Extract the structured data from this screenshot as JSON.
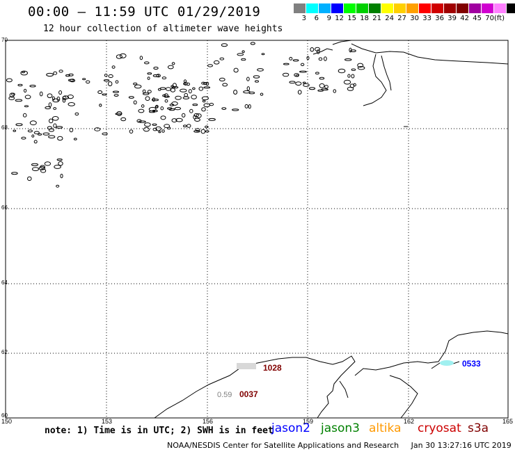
{
  "header": {
    "title": "00:00 – 11:59 UTC 01/29/2019",
    "subtitle": "12 hour collection of altimeter wave heights"
  },
  "legend": {
    "colors": [
      "#808080",
      "#00ffff",
      "#00b0ff",
      "#0000ff",
      "#00ff00",
      "#00d000",
      "#008000",
      "#ffff00",
      "#ffd000",
      "#ffa000",
      "#ff0000",
      "#d00000",
      "#a00000",
      "#800000",
      "#a000a0",
      "#d000d0",
      "#ff80ff",
      "#000000"
    ],
    "labels": [
      "3",
      "6",
      "9",
      "12",
      "15",
      "18",
      "21",
      "24",
      "27",
      "30",
      "33",
      "36",
      "39",
      "42",
      "45",
      "70"
    ],
    "unit": "(ft)"
  },
  "axes": {
    "lat_labels": [
      "70",
      "68",
      "66",
      "64",
      "62",
      "60"
    ],
    "lon_labels": [
      "150",
      "153",
      "156",
      "159",
      "162",
      "165"
    ]
  },
  "observations": [
    {
      "value": "1028",
      "color": "#800000"
    },
    {
      "value": "0.59",
      "color": "#808080"
    },
    {
      "value": "0037",
      "color": "#800000"
    },
    {
      "value": "0533",
      "color": "#0000ff"
    }
  ],
  "footer": {
    "note": "note: 1) Time is in UTC; 2) SWH is in feet",
    "satellites": [
      {
        "name": "jason2",
        "color": "#0000ff"
      },
      {
        "name": "jason3",
        "color": "#008000"
      },
      {
        "name": "altika",
        "color": "#ff9900"
      },
      {
        "name": "cryosat",
        "color": "#cc0000"
      },
      {
        "name": "s3a",
        "color": "#800000"
      }
    ],
    "credit": "NOAA/NESDIS Center for Satellite Applications and Research",
    "timestamp": "Jan 30 13:27:16 UTC 2019"
  }
}
